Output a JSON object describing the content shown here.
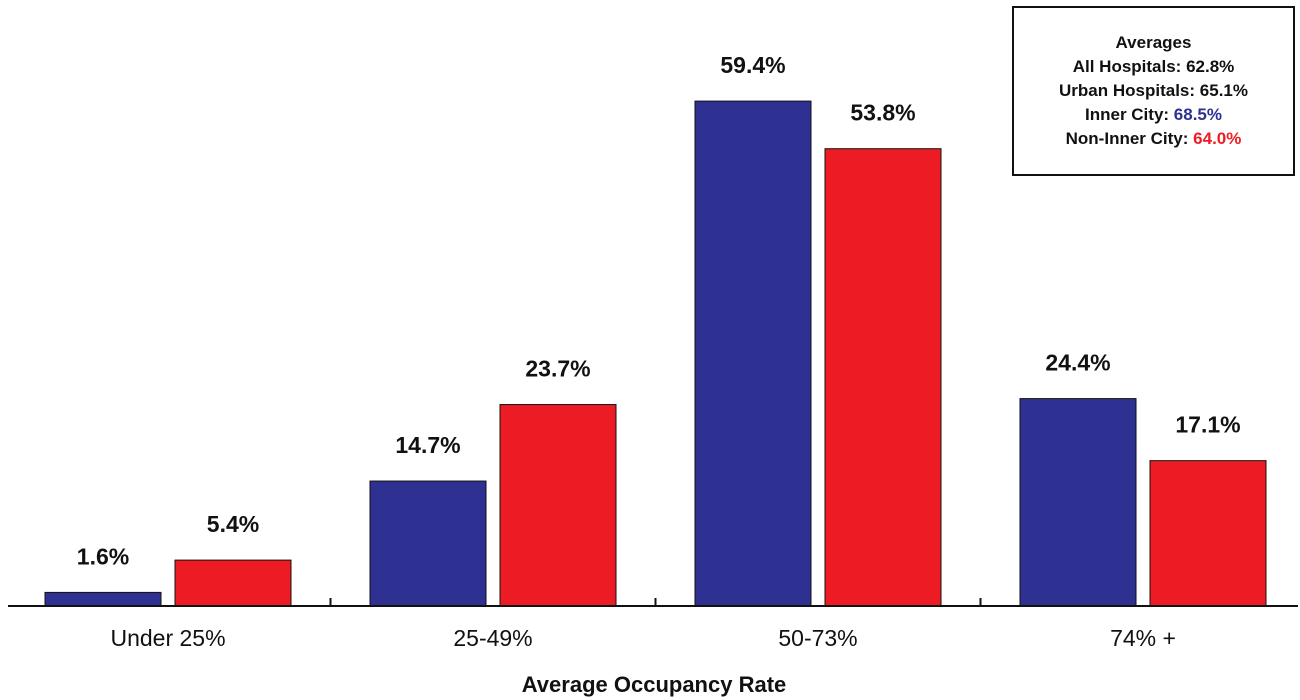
{
  "chart_data": {
    "type": "bar",
    "categories": [
      "Under 25%",
      "25-49%",
      "50-73%",
      "74% +"
    ],
    "series": [
      {
        "values": [
          1.6,
          14.7,
          59.4,
          24.4
        ],
        "color": "#2e3192"
      },
      {
        "values": [
          5.4,
          23.7,
          53.8,
          17.1
        ],
        "color": "#ed1c24"
      }
    ],
    "value_labels": [
      [
        "1.6%",
        "14.7%",
        "59.4%",
        "24.4%"
      ],
      [
        "5.4%",
        "23.7%",
        "53.8%",
        "17.1%"
      ]
    ],
    "xlabel": "Average Occupancy Rate",
    "ylabel": "",
    "ylim": [
      0,
      60
    ],
    "grid": false
  },
  "averages_box": {
    "title": "Averages",
    "rows": [
      {
        "label": "All Hospitals:",
        "value": "62.8%"
      },
      {
        "label": "Urban Hospitals:",
        "value": "65.1%"
      },
      {
        "label": "Inner City:",
        "value": "68.5%",
        "color": "#2e3192"
      },
      {
        "label": "Non-Inner City:",
        "value": "64.0%",
        "color": "#ed1c24"
      }
    ]
  }
}
